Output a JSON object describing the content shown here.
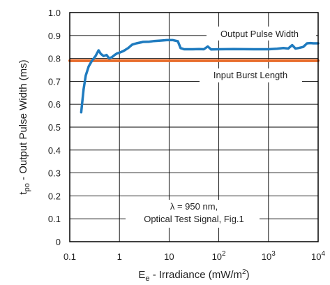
{
  "chart_data": {
    "type": "line",
    "xlabel": {
      "main": "E",
      "sub": "e",
      "rest": " - Irradiance (mW/m",
      "sup": "2",
      "end": ")"
    },
    "ylabel": {
      "main": "t",
      "sub": "po",
      "rest": " - Output Pulse Width (ms)"
    },
    "x_scale": "log",
    "xlim": [
      0.1,
      10000
    ],
    "ylim": [
      0,
      1.0
    ],
    "x_ticks": [
      {
        "value": 0.1,
        "base": "0.1",
        "exp": ""
      },
      {
        "value": 1,
        "base": "1",
        "exp": ""
      },
      {
        "value": 10,
        "base": "10",
        "exp": ""
      },
      {
        "value": 100,
        "base": "10",
        "exp": "2"
      },
      {
        "value": 1000,
        "base": "10",
        "exp": "3"
      },
      {
        "value": 10000,
        "base": "10",
        "exp": "4"
      }
    ],
    "y_ticks": [
      {
        "value": 0,
        "label": "0"
      },
      {
        "value": 0.1,
        "label": "0.1"
      },
      {
        "value": 0.2,
        "label": "0.2"
      },
      {
        "value": 0.3,
        "label": "0.3"
      },
      {
        "value": 0.4,
        "label": "0.4"
      },
      {
        "value": 0.5,
        "label": "0.5"
      },
      {
        "value": 0.6,
        "label": "0.6"
      },
      {
        "value": 0.7,
        "label": "0.7"
      },
      {
        "value": 0.8,
        "label": "0.8"
      },
      {
        "value": 0.9,
        "label": "0.9"
      },
      {
        "value": 1.0,
        "label": "1.0"
      }
    ],
    "grid": true,
    "series": [
      {
        "name": "Output Pulse Width",
        "color": "#1f7bbf",
        "x": [
          0.17,
          0.19,
          0.21,
          0.24,
          0.28,
          0.33,
          0.38,
          0.42,
          0.48,
          0.55,
          0.62,
          0.7,
          0.8,
          0.9,
          1.0,
          1.2,
          1.5,
          1.8,
          2.2,
          3,
          4,
          5,
          7,
          9,
          12,
          15,
          17,
          20,
          25,
          30,
          40,
          50,
          60,
          70,
          100,
          200,
          500,
          1000,
          1500,
          2000,
          2500,
          3000,
          3500,
          4000,
          5000,
          6000,
          7000,
          8000,
          10000
        ],
        "y": [
          0.565,
          0.665,
          0.725,
          0.765,
          0.79,
          0.81,
          0.835,
          0.82,
          0.81,
          0.815,
          0.8,
          0.805,
          0.815,
          0.822,
          0.825,
          0.832,
          0.845,
          0.86,
          0.866,
          0.872,
          0.873,
          0.876,
          0.878,
          0.88,
          0.88,
          0.875,
          0.845,
          0.84,
          0.84,
          0.84,
          0.841,
          0.84,
          0.852,
          0.839,
          0.84,
          0.841,
          0.84,
          0.84,
          0.842,
          0.845,
          0.843,
          0.858,
          0.843,
          0.845,
          0.85,
          0.866,
          0.867,
          0.866,
          0.866
        ]
      },
      {
        "name": "Input Burst Length",
        "color": "#e86b2a",
        "x": [
          0.1,
          10000
        ],
        "y": [
          0.79,
          0.79
        ]
      }
    ],
    "annotations": [
      {
        "line1": "λ = 950 nm,",
        "line2": "Optical Test Signal, Fig.1"
      }
    ]
  }
}
